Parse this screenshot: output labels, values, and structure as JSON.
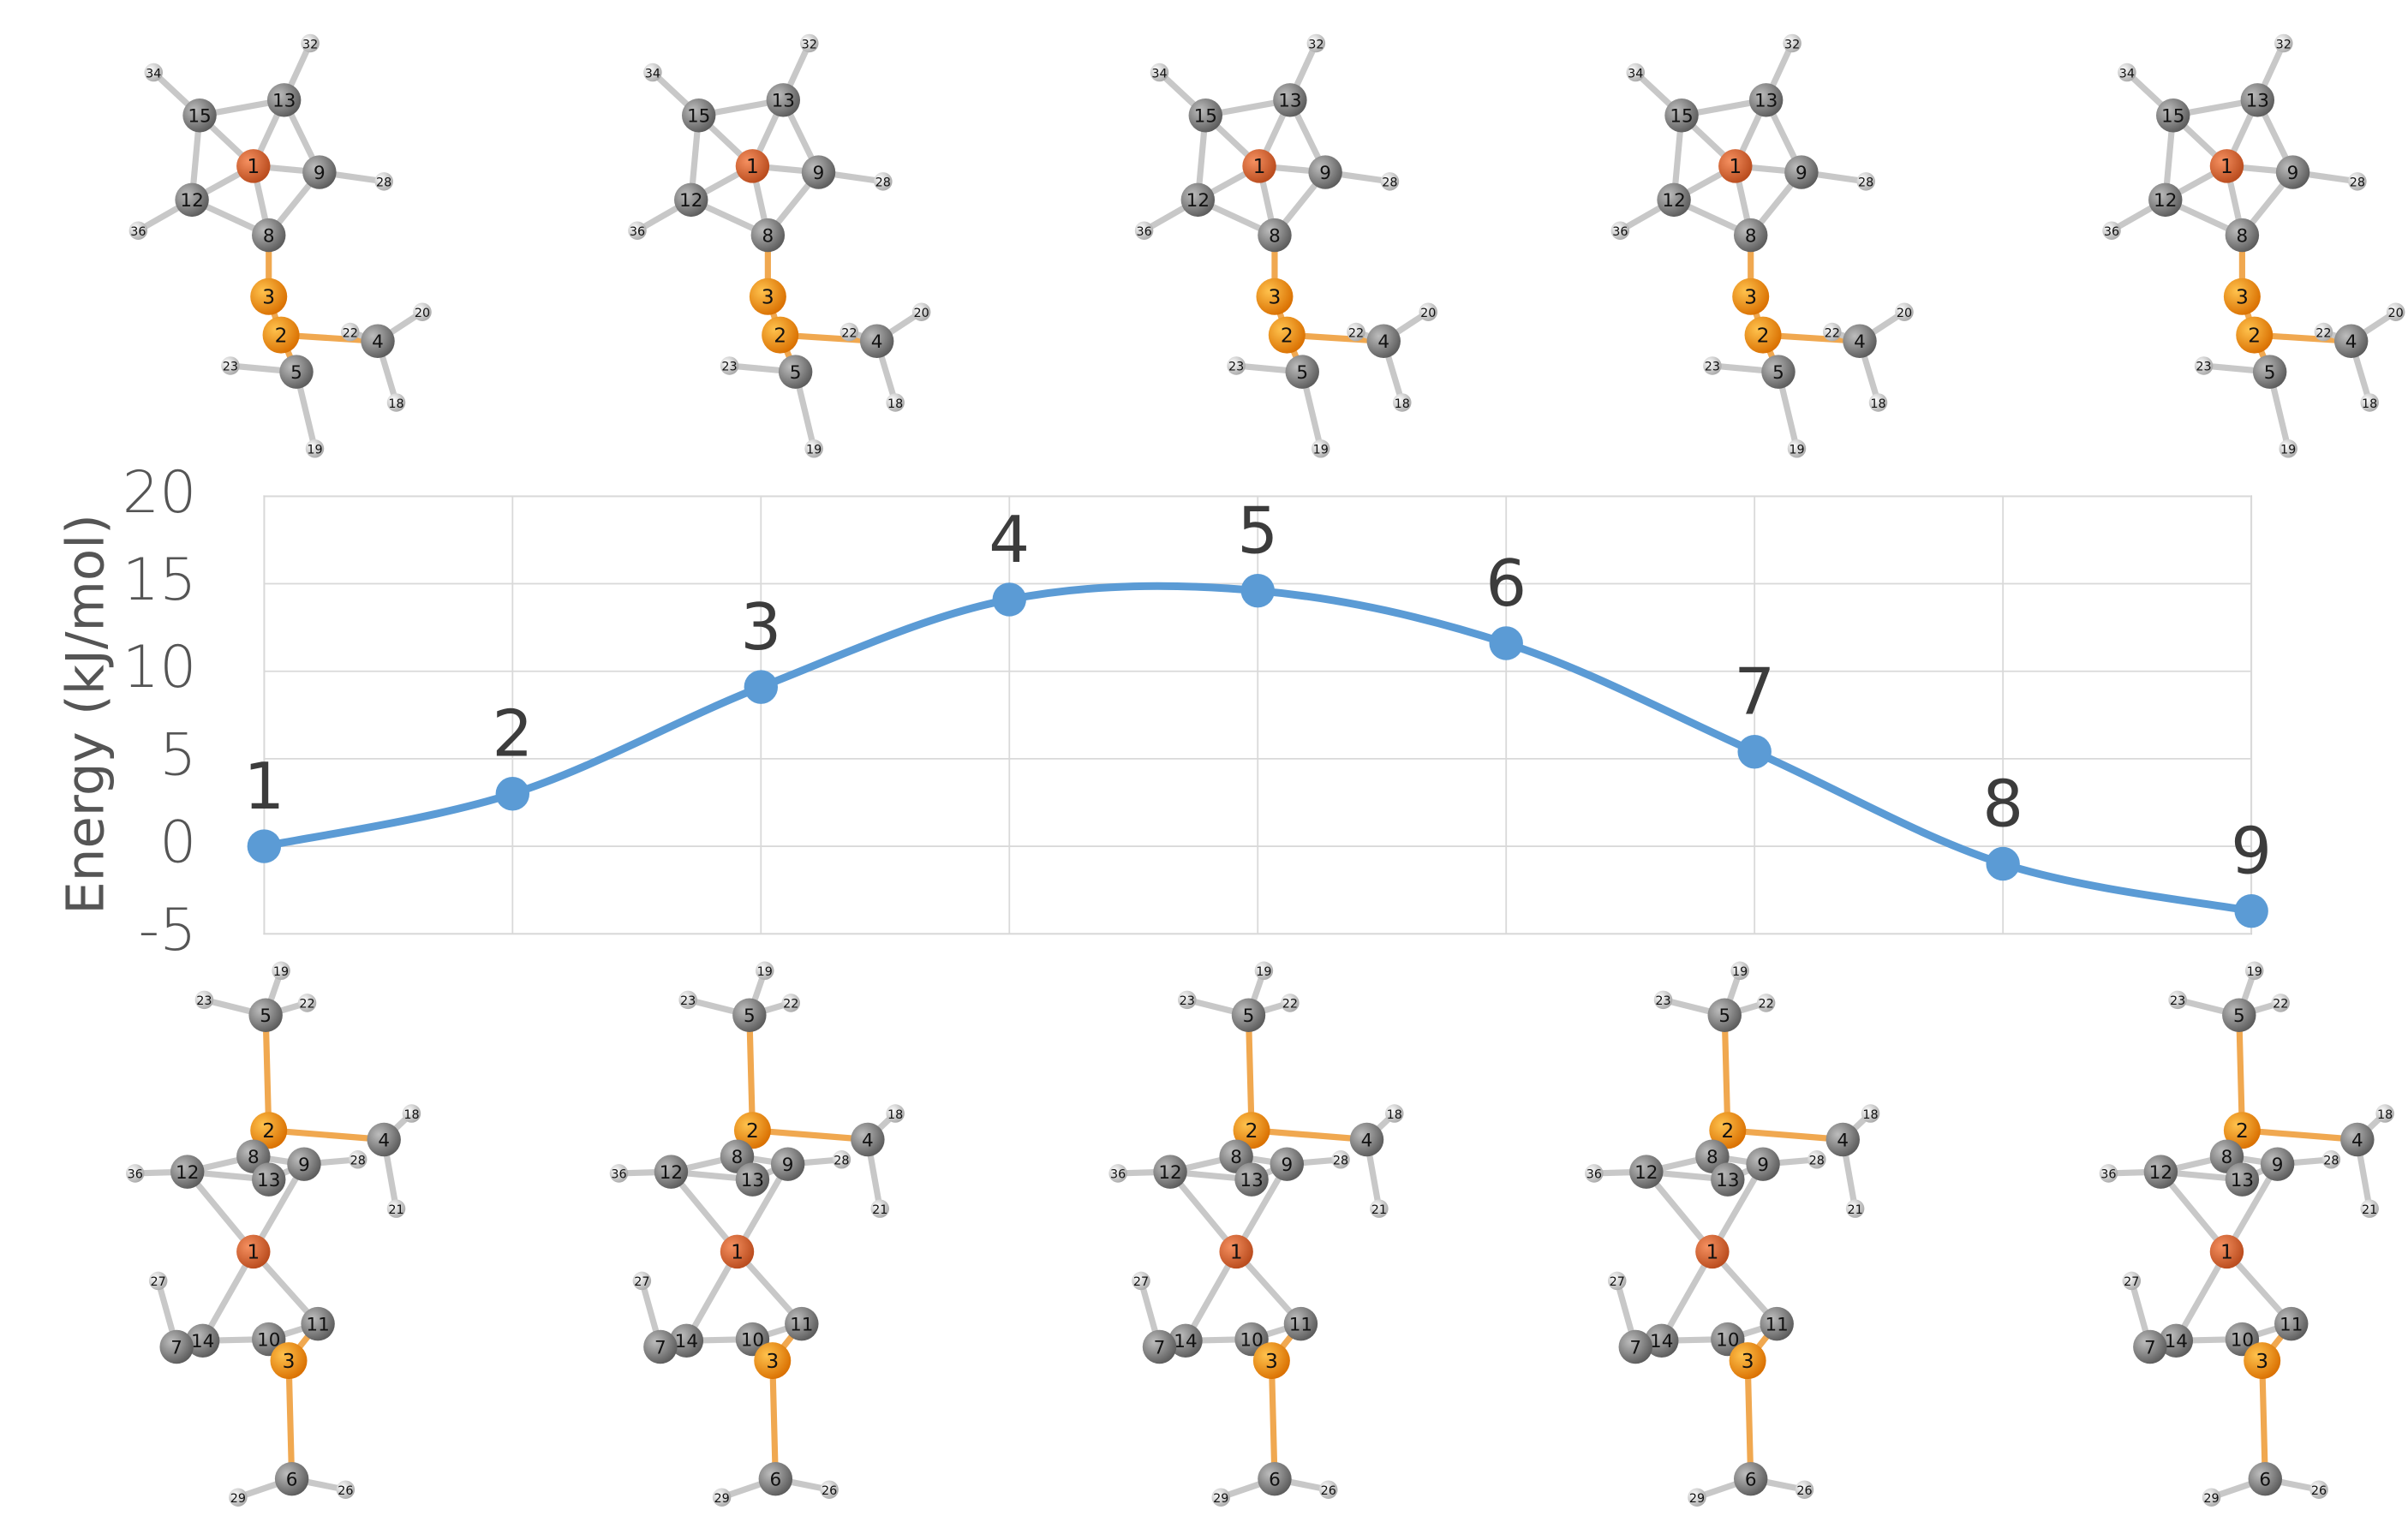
{
  "chart_data": {
    "type": "line",
    "y_label": "Energy (kJ/mol)",
    "categories": [
      "1",
      "2",
      "3",
      "4",
      "5",
      "6",
      "7",
      "8",
      "9"
    ],
    "values": [
      0,
      3.0,
      9.1,
      14.1,
      14.6,
      11.6,
      5.4,
      -1.0,
      -3.7
    ],
    "color": "#5b9bd5",
    "ylim": [
      -5,
      20
    ],
    "yticks": [
      -5,
      0,
      5,
      10,
      15,
      20
    ],
    "grid": true
  },
  "molecules": [
    {
      "top_atoms": [
        "15",
        "13",
        "1",
        "9",
        "12",
        "8",
        "3",
        "2",
        "4",
        "5",
        "22",
        "23",
        "19",
        "18",
        "20",
        "32",
        "34",
        "36",
        "28"
      ],
      "bottom_atoms": [
        "19",
        "5",
        "23",
        "22",
        "2",
        "4",
        "18",
        "21",
        "12",
        "8",
        "9",
        "13",
        "36",
        "28",
        "1",
        "14",
        "10",
        "11",
        "3",
        "6",
        "7",
        "27",
        "29",
        "26"
      ]
    },
    {
      "top_atoms": [
        "15",
        "13",
        "1",
        "9",
        "12",
        "8",
        "3",
        "2",
        "4",
        "5",
        "22",
        "23",
        "19",
        "18",
        "20",
        "32",
        "34",
        "36",
        "28"
      ],
      "bottom_atoms": [
        "19",
        "5",
        "23",
        "22",
        "2",
        "4",
        "18",
        "21",
        "12",
        "8",
        "9",
        "13",
        "36",
        "28",
        "1",
        "14",
        "10",
        "11",
        "3",
        "6",
        "7",
        "27",
        "29",
        "26"
      ]
    },
    {
      "top_atoms": [
        "15",
        "13",
        "1",
        "9",
        "12",
        "8",
        "3",
        "2",
        "4",
        "5",
        "22",
        "23",
        "19",
        "18",
        "20",
        "32",
        "34",
        "36",
        "28"
      ],
      "bottom_atoms": [
        "19",
        "5",
        "23",
        "22",
        "2",
        "4",
        "18",
        "21",
        "12",
        "8",
        "9",
        "13",
        "36",
        "28",
        "1",
        "14",
        "10",
        "11",
        "3",
        "6",
        "7",
        "27",
        "29",
        "26"
      ]
    },
    {
      "top_atoms": [
        "15",
        "13",
        "1",
        "9",
        "12",
        "8",
        "3",
        "2",
        "4",
        "5",
        "22",
        "23",
        "19",
        "18",
        "20",
        "32",
        "34",
        "36",
        "28"
      ],
      "bottom_atoms": [
        "19",
        "5",
        "23",
        "22",
        "2",
        "4",
        "18",
        "21",
        "12",
        "8",
        "9",
        "13",
        "36",
        "28",
        "1",
        "14",
        "10",
        "11",
        "3",
        "6",
        "7",
        "27",
        "29",
        "26"
      ]
    },
    {
      "top_atoms": [
        "15",
        "13",
        "1",
        "9",
        "12",
        "8",
        "3",
        "2",
        "4",
        "5",
        "22",
        "23",
        "19",
        "18",
        "20",
        "32",
        "34",
        "36",
        "28"
      ],
      "bottom_atoms": [
        "19",
        "5",
        "23",
        "22",
        "2",
        "4",
        "18",
        "21",
        "12",
        "8",
        "9",
        "13",
        "36",
        "28",
        "1",
        "14",
        "10",
        "11",
        "3",
        "6",
        "7",
        "27",
        "29",
        "26"
      ]
    }
  ]
}
